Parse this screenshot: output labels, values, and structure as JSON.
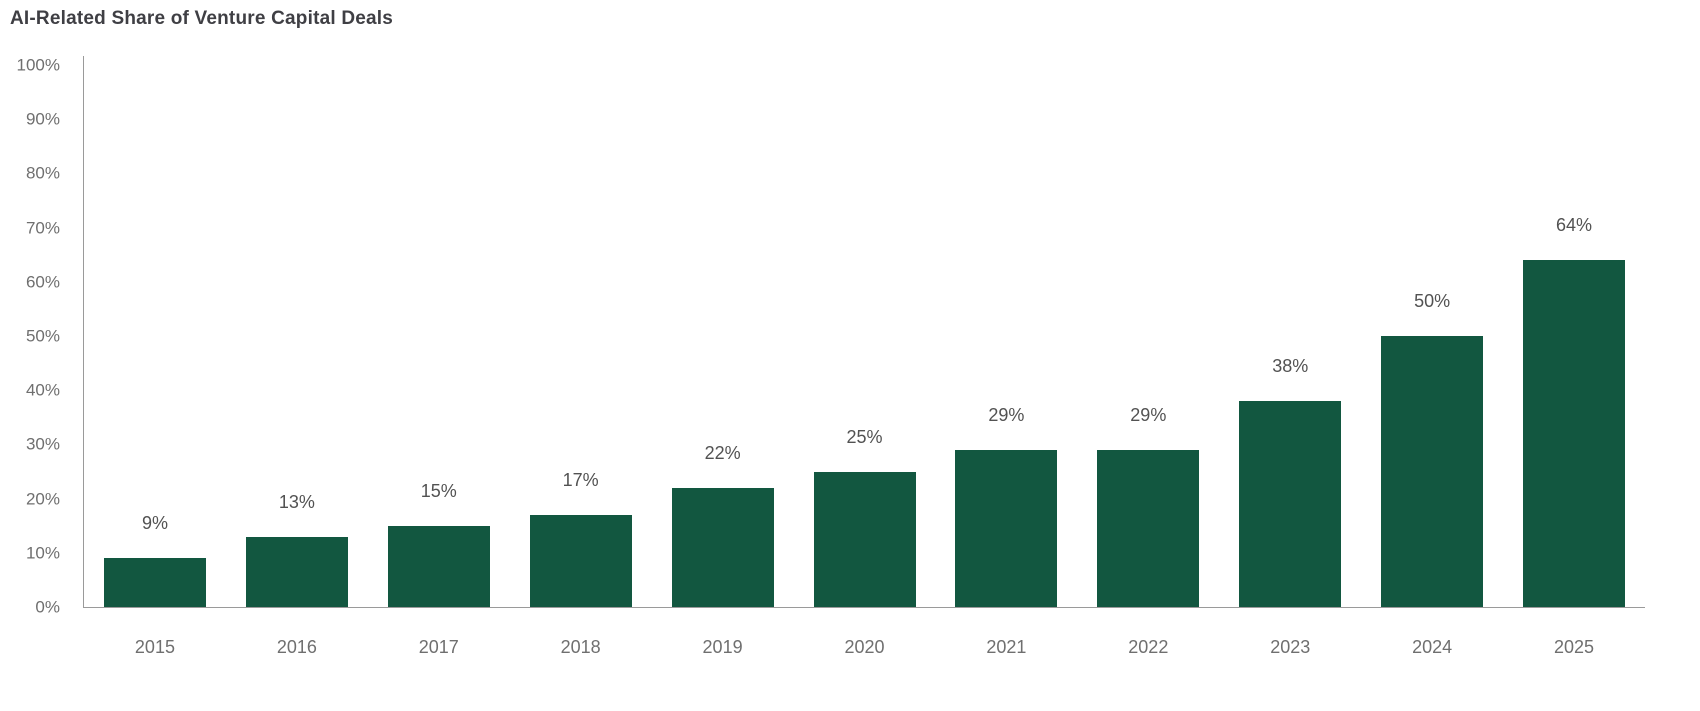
{
  "chart_data": {
    "type": "bar",
    "title": "AI-Related Share of Venture Capital Deals",
    "categories": [
      "2015",
      "2016",
      "2017",
      "2018",
      "2019",
      "2020",
      "2021",
      "2022",
      "2023",
      "2024",
      "2025"
    ],
    "values": [
      9,
      13,
      15,
      17,
      22,
      25,
      29,
      29,
      38,
      50,
      64
    ],
    "value_labels": [
      "9%",
      "13%",
      "15%",
      "17%",
      "22%",
      "25%",
      "29%",
      "29%",
      "38%",
      "50%",
      "64%"
    ],
    "xlabel": "",
    "ylabel": "",
    "ylim": [
      0,
      100
    ],
    "y_ticks": [
      {
        "label": "0%",
        "value": 0
      },
      {
        "label": "10%",
        "value": 10
      },
      {
        "label": "20%",
        "value": 20
      },
      {
        "label": "30%",
        "value": 30
      },
      {
        "label": "40%",
        "value": 40
      },
      {
        "label": "50%",
        "value": 50
      },
      {
        "label": "60%",
        "value": 60
      },
      {
        "label": "70%",
        "value": 70
      },
      {
        "label": "80%",
        "value": 80
      },
      {
        "label": "90%",
        "value": 90
      },
      {
        "label": "100%",
        "value": 100
      }
    ],
    "grid": false,
    "legend": "none",
    "colors": {
      "bar": "#125740",
      "axis": "#9a9a9a",
      "title": "#3f3f44",
      "tick": "#6f6f6f",
      "value_label": "#525252",
      "background": "#ffffff"
    }
  }
}
